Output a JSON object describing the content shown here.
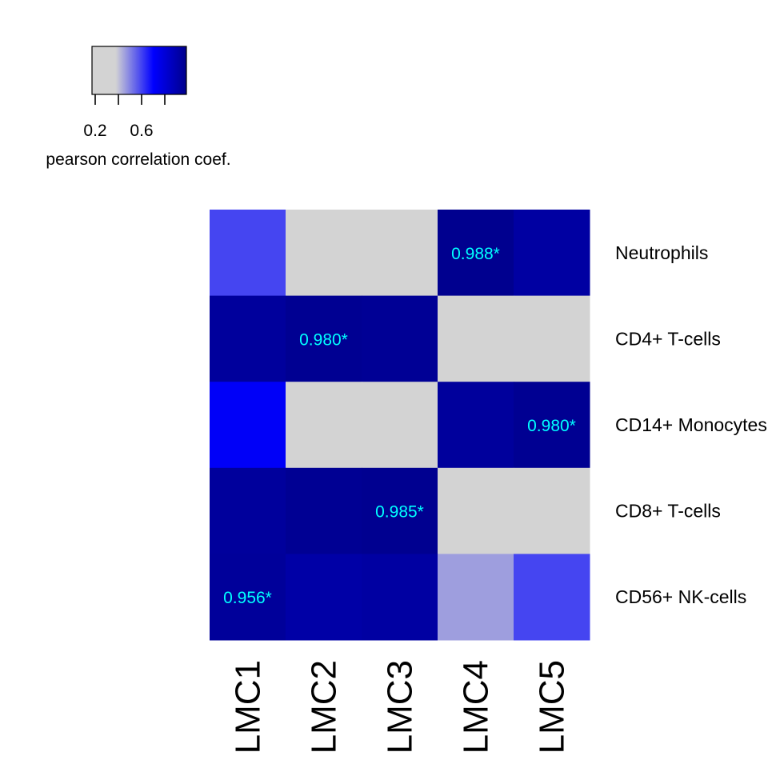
{
  "chart_data": {
    "type": "heatmap",
    "title": "",
    "columns": [
      "LMC1",
      "LMC2",
      "LMC3",
      "LMC4",
      "LMC5"
    ],
    "rows": [
      "Neutrophils",
      "CD4+ T-cells",
      "CD14+ Monocytes",
      "CD8+ T-cells",
      "CD56+ NK-cells"
    ],
    "values": [
      [
        0.52,
        0.1,
        0.1,
        0.988,
        0.93
      ],
      [
        0.95,
        0.98,
        0.97,
        0.12,
        0.18
      ],
      [
        0.67,
        0.14,
        0.14,
        0.95,
        0.98
      ],
      [
        0.95,
        0.975,
        0.985,
        0.05,
        0.1
      ],
      [
        0.956,
        0.92,
        0.93,
        0.35,
        0.52
      ]
    ],
    "cell_labels": [
      [
        "",
        "",
        "",
        "0.988*",
        ""
      ],
      [
        "",
        "0.980*",
        "",
        "",
        ""
      ],
      [
        "",
        "",
        "",
        "",
        "0.980*"
      ],
      [
        "",
        "",
        "0.985*",
        "",
        ""
      ],
      [
        "0.956*",
        "",
        "",
        "",
        ""
      ]
    ],
    "colorscale": {
      "min": 0.0,
      "max": 1.0,
      "colors": [
        "#d3d3d3",
        "#d3d3d3",
        "#0000ff",
        "#00008b"
      ],
      "stops": [
        0.0,
        0.25,
        0.65,
        1.0
      ]
    },
    "legend": {
      "title": "pearson correlation coef.",
      "tick_labels": [
        "0.2",
        "0.6"
      ],
      "tick_values": [
        0.2,
        0.6
      ],
      "minor_tick_values": [
        0.4,
        0.8
      ],
      "placement": "top-left"
    },
    "label_color": "#00ffff"
  }
}
